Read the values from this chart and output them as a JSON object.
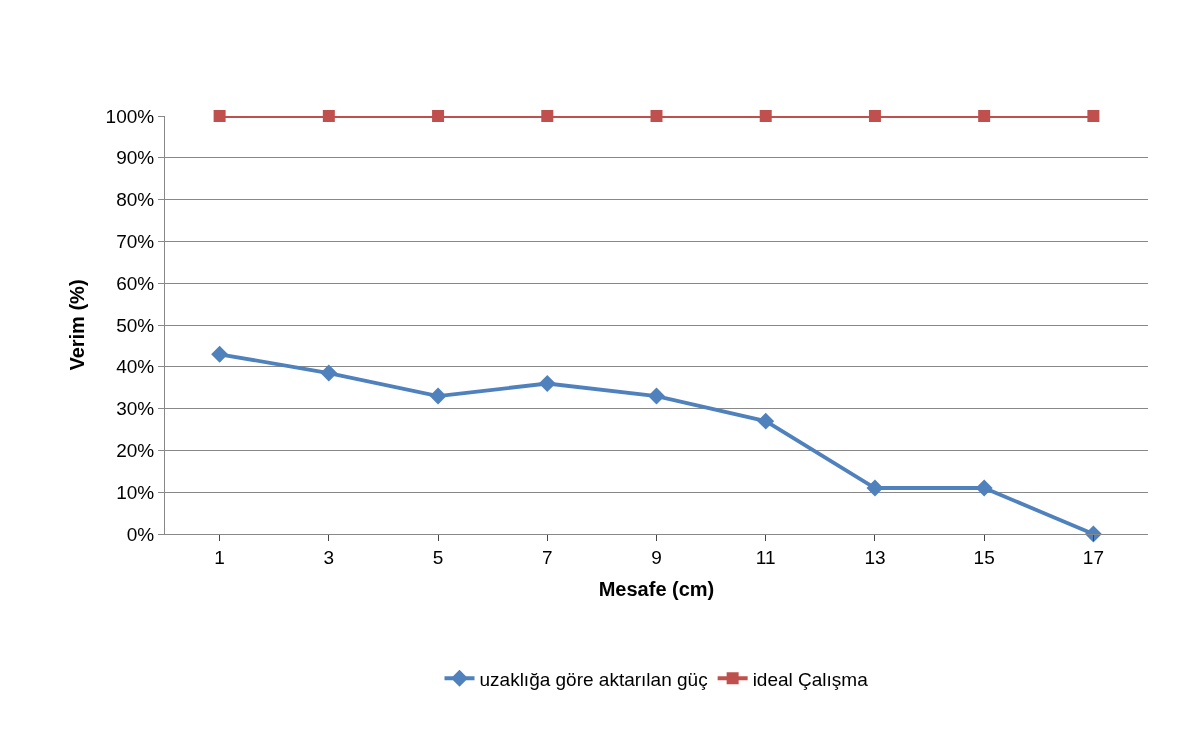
{
  "chart_data": {
    "type": "line",
    "xlabel": "Mesafe (cm)",
    "ylabel": "Verim (%)",
    "x": [
      1,
      3,
      5,
      7,
      9,
      11,
      13,
      15,
      17
    ],
    "xlim": [
      0,
      18
    ],
    "xticks": [
      1,
      3,
      5,
      7,
      9,
      11,
      13,
      15,
      17
    ],
    "series": [
      {
        "name": "uzaklığa göre aktarılan güç",
        "color": "#4f81bd",
        "marker": "diamond",
        "values": [
          43,
          38.5,
          33,
          36,
          33,
          27,
          11,
          11,
          0
        ]
      },
      {
        "name": "ideal Çalışma",
        "color": "#c0504d",
        "marker": "square",
        "values": [
          100,
          100,
          100,
          100,
          100,
          100,
          100,
          100,
          100
        ]
      }
    ],
    "ylim": [
      0,
      100
    ],
    "yticks": [
      {
        "value": 0,
        "label": "0%"
      },
      {
        "value": 10,
        "label": "10%"
      },
      {
        "value": 20,
        "label": "20%"
      },
      {
        "value": 30,
        "label": "30%"
      },
      {
        "value": 40,
        "label": "40%"
      },
      {
        "value": 50,
        "label": "50%"
      },
      {
        "value": 60,
        "label": "60%"
      },
      {
        "value": 70,
        "label": "70%"
      },
      {
        "value": 80,
        "label": "80%"
      },
      {
        "value": 90,
        "label": "90%"
      },
      {
        "value": 100,
        "label": "100%"
      }
    ],
    "grid": "y",
    "legend": "bottom",
    "line_style": "solid"
  }
}
